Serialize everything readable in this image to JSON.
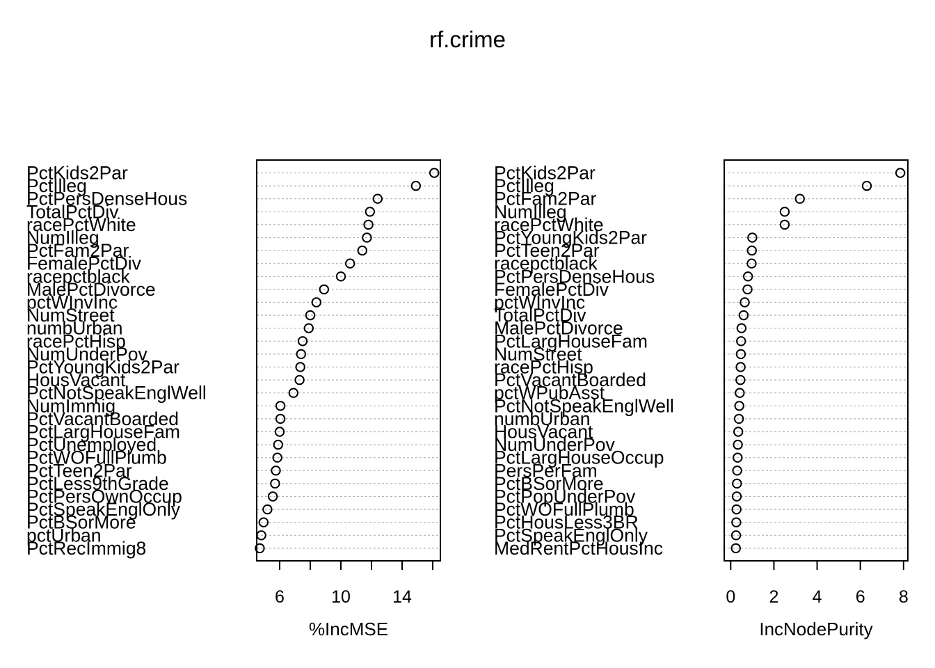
{
  "title": "rf.crime",
  "chart_data": [
    {
      "type": "scatter",
      "xlabel": "%IncMSE",
      "xlim": [
        4.5,
        16.5
      ],
      "xticks": [
        6,
        10,
        14
      ],
      "minor_ticks": [
        8,
        12,
        16
      ],
      "grid": "horizontal dotted",
      "point_style": "open circle",
      "categories": [
        "PctKids2Par",
        "PctIlleg",
        "PctPersDenseHous",
        "TotalPctDiv",
        "racePctWhite",
        "NumIlleg",
        "PctFam2Par",
        "FemalePctDiv",
        "racepctblack",
        "MalePctDivorce",
        "pctWInvInc",
        "NumStreet",
        "numbUrban",
        "racePctHisp",
        "NumUnderPov",
        "PctYoungKids2Par",
        "HousVacant",
        "PctNotSpeakEnglWell",
        "NumImmig",
        "PctVacantBoarded",
        "PctLargHouseFam",
        "PctUnemployed",
        "PctWOFullPlumb",
        "PctTeen2Par",
        "PctLess9thGrade",
        "PctPersOwnOccup",
        "PctSpeakEnglOnly",
        "PctBSorMore",
        "pctUrban",
        "PctRecImmig8"
      ],
      "values": [
        16.1,
        14.9,
        12.4,
        11.9,
        11.8,
        11.7,
        11.4,
        10.6,
        10.0,
        8.9,
        8.4,
        8.0,
        7.9,
        7.5,
        7.4,
        7.35,
        7.3,
        6.9,
        6.05,
        6.05,
        6.0,
        5.9,
        5.85,
        5.75,
        5.7,
        5.55,
        5.2,
        4.95,
        4.8,
        4.7
      ]
    },
    {
      "type": "scatter",
      "xlabel": "IncNodePurity",
      "xlim": [
        -0.3,
        8.2
      ],
      "xticks": [
        0,
        2,
        4,
        6,
        8
      ],
      "grid": "horizontal dotted",
      "point_style": "open circle",
      "categories": [
        "PctKids2Par",
        "PctIlleg",
        "PctFam2Par",
        "NumIlleg",
        "racePctWhite",
        "PctYoungKids2Par",
        "PctTeen2Par",
        "racepctblack",
        "PctPersDenseHous",
        "FemalePctDiv",
        "pctWInvInc",
        "TotalPctDiv",
        "MalePctDivorce",
        "PctLargHouseFam",
        "NumStreet",
        "racePctHisp",
        "PctVacantBoarded",
        "pctWPubAsst",
        "PctNotSpeakEnglWell",
        "numbUrban",
        "HousVacant",
        "NumUnderPov",
        "PctLargHouseOccup",
        "PersPerFam",
        "PctBSorMore",
        "PctPopUnderPov",
        "PctWOFullPlumb",
        "PctHousLess3BR",
        "PctSpeakEnglOnly",
        "MedRentPctHousInc"
      ],
      "values": [
        7.85,
        6.3,
        3.2,
        2.5,
        2.5,
        1.0,
        0.98,
        0.97,
        0.8,
        0.78,
        0.65,
        0.6,
        0.5,
        0.48,
        0.47,
        0.46,
        0.45,
        0.42,
        0.4,
        0.38,
        0.35,
        0.33,
        0.32,
        0.3,
        0.29,
        0.28,
        0.27,
        0.26,
        0.25,
        0.24
      ]
    }
  ]
}
